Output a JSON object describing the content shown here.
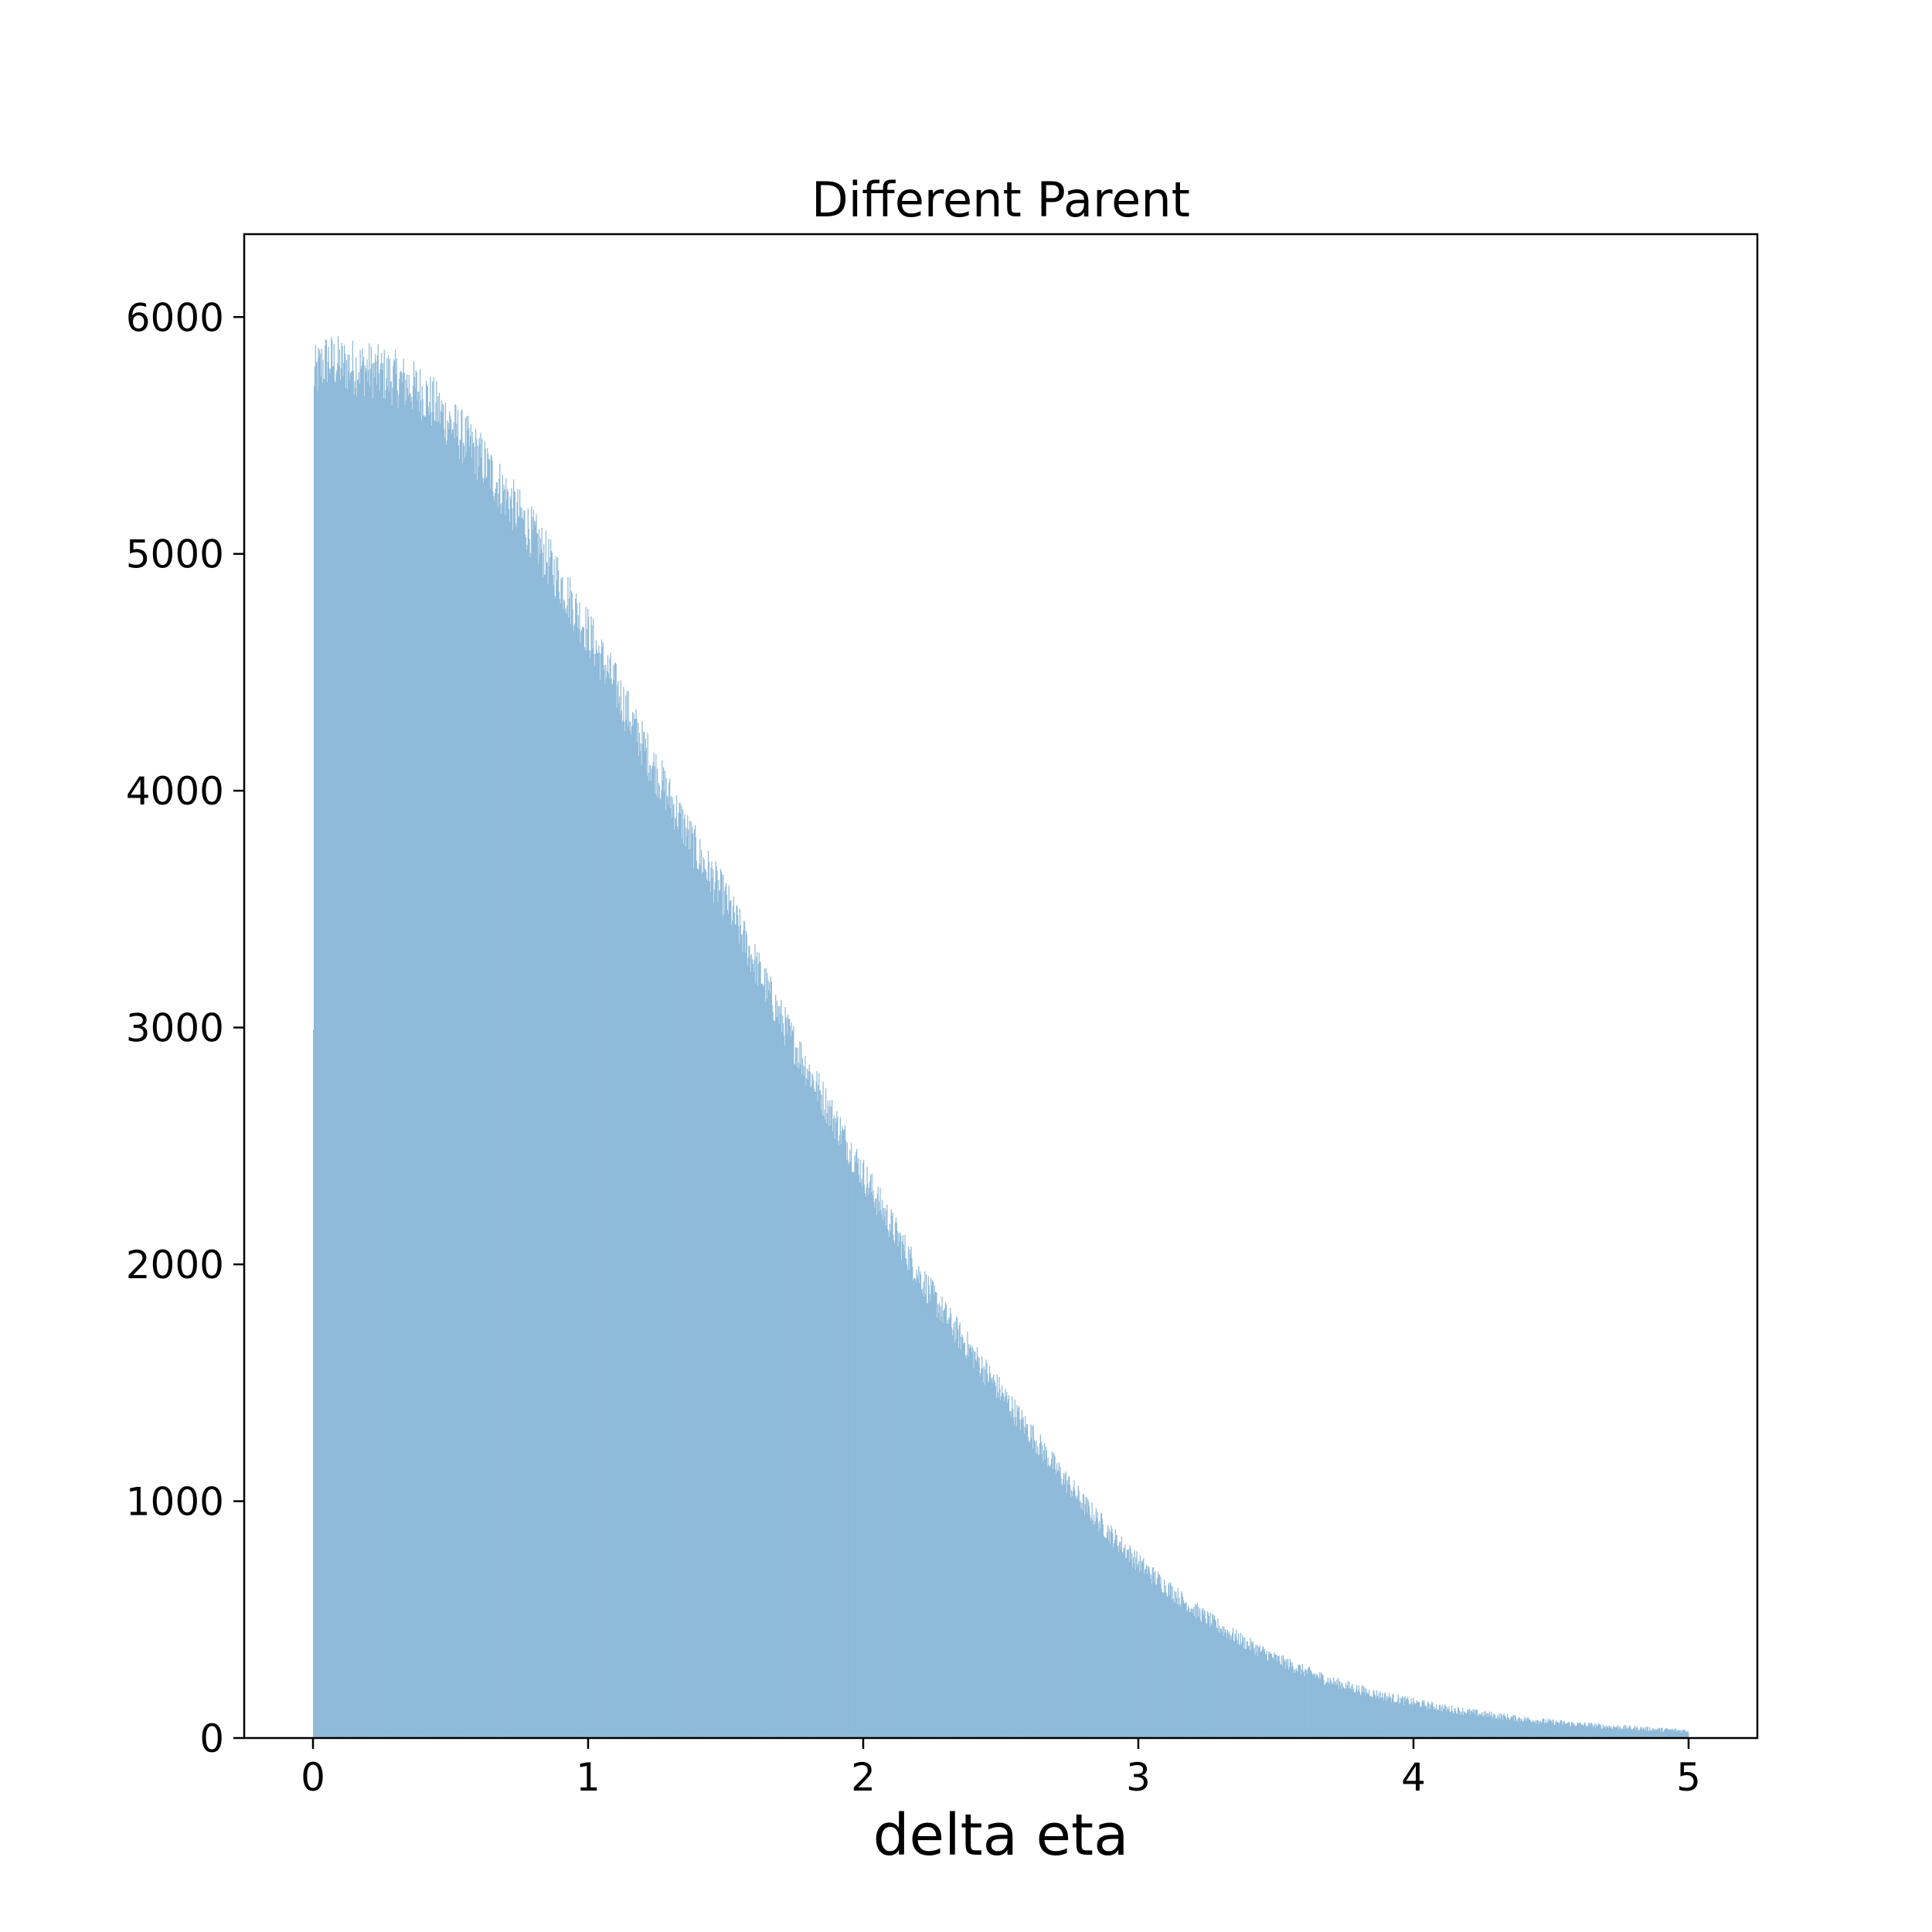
{
  "chart_data": {
    "type": "bar",
    "title": "Different Parent",
    "xlabel": "delta eta",
    "ylabel": "",
    "xlim": [
      -0.25,
      5.25
    ],
    "ylim": [
      0,
      6350
    ],
    "x_ticks": [
      0,
      1,
      2,
      3,
      4,
      5
    ],
    "y_ticks": [
      0,
      1000,
      2000,
      3000,
      4000,
      5000,
      6000
    ],
    "bar_color": "#8fbad9",
    "bin_range": [
      0,
      5
    ],
    "bin_width": 0.0025,
    "grid": false,
    "series": [
      {
        "x": [
          0.0,
          0.05,
          0.1,
          0.2,
          0.3,
          0.4,
          0.5,
          0.6,
          0.7,
          0.8,
          0.9,
          1.0,
          1.1,
          1.2,
          1.3,
          1.4,
          1.5,
          1.6,
          1.7,
          1.8,
          1.9,
          2.0,
          2.1,
          2.2,
          2.3,
          2.4,
          2.5,
          2.6,
          2.7,
          2.8,
          2.9,
          3.0,
          3.1,
          3.2,
          3.3,
          3.4,
          3.5,
          3.6,
          3.7,
          3.8,
          3.9,
          4.0,
          4.1,
          4.2,
          4.3,
          4.4,
          4.5,
          4.6,
          4.7,
          4.8,
          4.9,
          5.0
        ],
        "values": [
          5750,
          5820,
          5800,
          5780,
          5740,
          5680,
          5550,
          5420,
          5250,
          5080,
          4880,
          4670,
          4440,
          4190,
          3960,
          3730,
          3540,
          3290,
          3040,
          2820,
          2600,
          2380,
          2170,
          1960,
          1780,
          1620,
          1460,
          1300,
          1140,
          990,
          860,
          740,
          640,
          545,
          465,
          395,
          335,
          285,
          240,
          205,
          175,
          150,
          128,
          110,
          94,
          80,
          68,
          58,
          49,
          42,
          36,
          30
        ]
      }
    ]
  }
}
